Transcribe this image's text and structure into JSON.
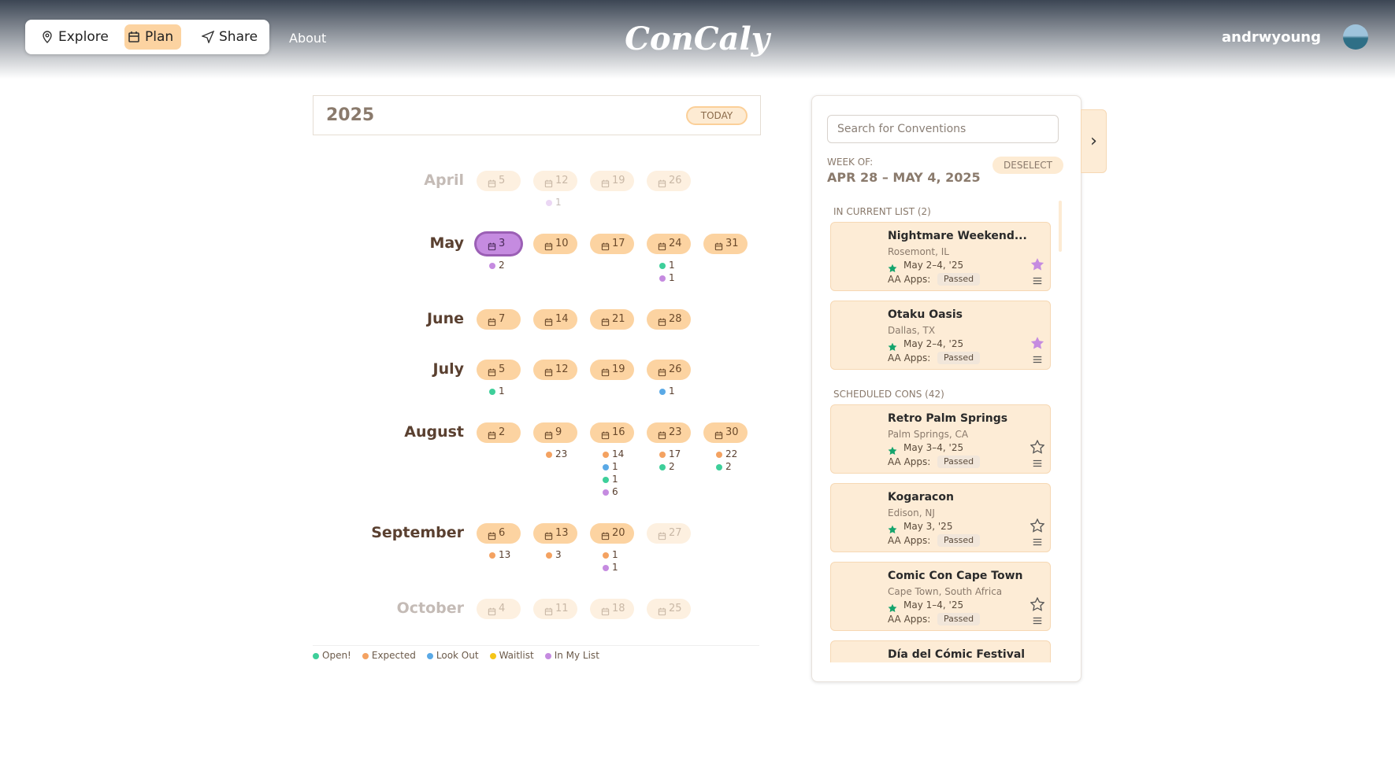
{
  "nav": {
    "items": [
      "Explore",
      "Plan",
      "Share"
    ],
    "active": 1,
    "about": "About",
    "logo": "ConCaly",
    "user": "andrwyoung"
  },
  "calendar": {
    "year": "2025",
    "today": "TODAY",
    "months": [
      {
        "name": "April",
        "faded": true,
        "weeks": [
          {
            "day": 5,
            "dots": []
          },
          {
            "day": 12,
            "dots": [
              {
                "color": "#c58be0",
                "n": 1
              }
            ]
          },
          {
            "day": 19,
            "dots": []
          },
          {
            "day": 26,
            "dots": []
          }
        ]
      },
      {
        "name": "May",
        "weeks": [
          {
            "day": 3,
            "selected": true,
            "dots": [
              {
                "color": "#c58be0",
                "n": 2
              }
            ]
          },
          {
            "day": 10,
            "dots": []
          },
          {
            "day": 17,
            "dots": []
          },
          {
            "day": 24,
            "dots": [
              {
                "color": "#3ecf9a",
                "n": 1
              },
              {
                "color": "#c58be0",
                "n": 1
              }
            ]
          },
          {
            "day": 31,
            "dots": []
          }
        ]
      },
      {
        "name": "June",
        "weeks": [
          {
            "day": 7,
            "dots": []
          },
          {
            "day": 14,
            "dots": []
          },
          {
            "day": 21,
            "dots": []
          },
          {
            "day": 28,
            "dots": []
          }
        ]
      },
      {
        "name": "July",
        "weeks": [
          {
            "day": 5,
            "dots": [
              {
                "color": "#3ecf9a",
                "n": 1
              }
            ]
          },
          {
            "day": 12,
            "dots": []
          },
          {
            "day": 19,
            "dots": []
          },
          {
            "day": 26,
            "dots": [
              {
                "color": "#5aa9e6",
                "n": 1
              }
            ]
          }
        ]
      },
      {
        "name": "August",
        "weeks": [
          {
            "day": 2,
            "dots": []
          },
          {
            "day": 9,
            "dots": [
              {
                "color": "#f4a261",
                "n": 23
              }
            ]
          },
          {
            "day": 16,
            "dots": [
              {
                "color": "#f4a261",
                "n": 14
              },
              {
                "color": "#5aa9e6",
                "n": 1
              },
              {
                "color": "#3ecf9a",
                "n": 1
              },
              {
                "color": "#c58be0",
                "n": 6
              }
            ]
          },
          {
            "day": 23,
            "dots": [
              {
                "color": "#f4a261",
                "n": 17
              },
              {
                "color": "#3ecf9a",
                "n": 2
              }
            ]
          },
          {
            "day": 30,
            "dots": [
              {
                "color": "#f4a261",
                "n": 22
              },
              {
                "color": "#3ecf9a",
                "n": 2
              }
            ]
          }
        ]
      },
      {
        "name": "September",
        "weeks": [
          {
            "day": 6,
            "dots": [
              {
                "color": "#f4a261",
                "n": 13
              }
            ]
          },
          {
            "day": 13,
            "dots": [
              {
                "color": "#f4a261",
                "n": 3
              }
            ]
          },
          {
            "day": 20,
            "dots": [
              {
                "color": "#f4a261",
                "n": 1
              },
              {
                "color": "#c58be0",
                "n": 1
              }
            ]
          },
          {
            "day": 27,
            "faded": true,
            "dots": []
          }
        ]
      },
      {
        "name": "October",
        "faded": true,
        "weeks": [
          {
            "day": 4,
            "dots": []
          },
          {
            "day": 11,
            "dots": []
          },
          {
            "day": 18,
            "dots": []
          },
          {
            "day": 25,
            "dots": []
          }
        ]
      }
    ],
    "legend": [
      {
        "label": "Open!",
        "color": "#3ecf9a"
      },
      {
        "label": "Expected",
        "color": "#f4a261"
      },
      {
        "label": "Look Out",
        "color": "#5aa9e6"
      },
      {
        "label": "Waitlist",
        "color": "#f5c518"
      },
      {
        "label": "In My List",
        "color": "#c58be0"
      }
    ]
  },
  "sidebar": {
    "search": "Search for Conventions",
    "week_of": "WEEK OF:",
    "week": "APR 28 – MAY 4, 2025",
    "deselect": "DESELECT",
    "sections": [
      {
        "title": "IN CURRENT LIST (2)",
        "cards": [
          {
            "name": "Nightmare Weekend...",
            "location": "Rosemont, IL",
            "dates": "May 2–4, '25",
            "apps": "AA Apps:",
            "status": "Passed",
            "starred": true
          },
          {
            "name": "Otaku Oasis",
            "location": "Dallas, TX",
            "dates": "May 2–4, '25",
            "apps": "AA Apps:",
            "status": "Passed",
            "starred": true
          }
        ]
      },
      {
        "title": "SCHEDULED CONS (42)",
        "cards": [
          {
            "name": "Retro Palm Springs",
            "location": "Palm Springs, CA",
            "dates": "May 3–4, '25",
            "apps": "AA Apps:",
            "status": "Passed",
            "starred": false
          },
          {
            "name": "Kogaracon",
            "location": "Edison, NJ",
            "dates": "May 3, '25",
            "apps": "AA Apps:",
            "status": "Passed",
            "starred": false
          },
          {
            "name": "Comic Con Cape Town",
            "location": "Cape Town, South Africa",
            "dates": "May 1–4, '25",
            "apps": "AA Apps:",
            "status": "Passed",
            "starred": false
          },
          {
            "name": "Día del Cómic Festival",
            "location": "",
            "dates": "",
            "apps": "",
            "status": "",
            "starred": false
          }
        ]
      }
    ]
  }
}
